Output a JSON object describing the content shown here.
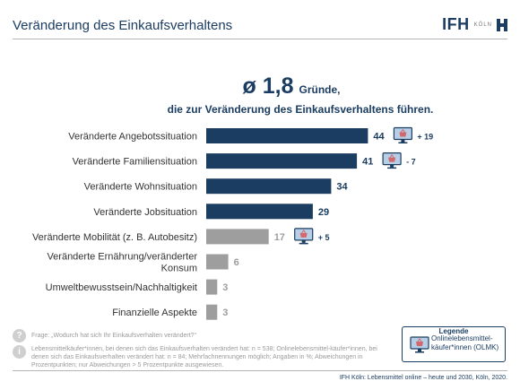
{
  "header": {
    "title": "Veränderung des Einkaufsverhaltens",
    "logo_main": "IFH",
    "logo_sub": "KÖLN"
  },
  "headline": {
    "avg": "ø 1,8",
    "avg_word": "Gründe,",
    "sub": "die zur Veränderung des Einkaufsverhaltens führen."
  },
  "chart_data": {
    "type": "bar",
    "orientation": "horizontal",
    "unit": "%",
    "categories": [
      "Veränderte Angebotssituation",
      "Veränderte Familiensituation",
      "Veränderte Wohnsituation",
      "Veränderte Jobsituation",
      "Veränderte Mobilität (z. B. Autobesitz)",
      "Veränderte Ernährung/veränderter Konsum",
      "Umweltbewusstsein/Nachhaltigkeit",
      "Finanzielle Aspekte"
    ],
    "category_lines": [
      [
        "Veränderte Angebotssituation"
      ],
      [
        "Veränderte Familiensituation"
      ],
      [
        "Veränderte Wohnsituation"
      ],
      [
        "Veränderte Jobsituation"
      ],
      [
        "Veränderte Mobilität (z. B. Autobesitz)"
      ],
      [
        "Veränderte Ernährung/veränderter",
        "Konsum"
      ],
      [
        "Umweltbewusstsein/Nachhaltigkeit"
      ],
      [
        "Finanzielle Aspekte"
      ]
    ],
    "values": [
      44,
      41,
      34,
      29,
      17,
      6,
      3,
      3
    ],
    "value_labels": [
      "44",
      "41",
      "34",
      "29",
      "17",
      "6",
      "3",
      "3"
    ],
    "deviations": [
      "+ 19",
      "- 7",
      "",
      "",
      "+ 5",
      "",
      "",
      ""
    ],
    "colors": [
      "#1b3d62",
      "#1b3d62",
      "#1b3d62",
      "#1b3d62",
      "#9e9e9e",
      "#9e9e9e",
      "#9e9e9e",
      "#9e9e9e"
    ],
    "label_colors": [
      "#1b3d62",
      "#1b3d62",
      "#1b3d62",
      "#1b3d62",
      "#9e9e9e",
      "#9e9e9e",
      "#9e9e9e",
      "#9e9e9e"
    ],
    "xlim": [
      0,
      50
    ],
    "grid": false,
    "legend": "bottom-right"
  },
  "notes": {
    "question_icon": "?",
    "info_icon": "i",
    "question": "Frage: „Wodurch hat sich Ihr Einkaufsverhalten verändert?“",
    "info": "Lebensmittelkäufer*innen, bei denen sich das Einkaufsverhalten verändert hat: n = 538; Onlinelebensmittel-käufer*innen, bei denen sich das Einkaufsverhalten verändert hat: n = 84; Mehrfachnennungen möglich; Angaben in %; Abweichungen in Prozentpunkten; nur Abweichungen > 5 Prozentpunkte ausgewiesen."
  },
  "legend": {
    "title": "Legende",
    "label": "Onlinelebensmittel-käufer*innen (OLMK)",
    "icon": "computer-monitor-icon"
  },
  "footer": {
    "source": "IFH Köln: Lebensmittel online – heute und 2030, Köln, 2020."
  },
  "colors": {
    "brand": "#1b3d62",
    "gray": "#9e9e9e",
    "screen": "#b7cfe6",
    "basket": "#d2686d"
  }
}
